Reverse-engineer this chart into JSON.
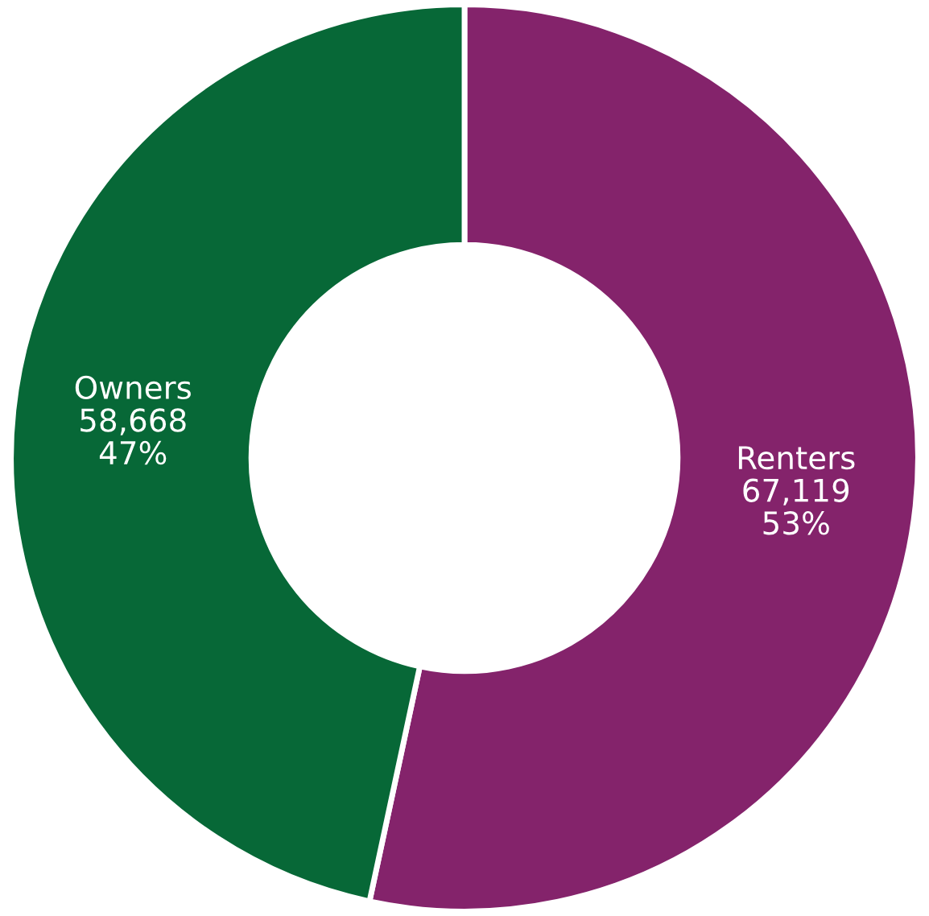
{
  "chart_data": {
    "type": "donut",
    "categories": [
      "Renters",
      "Owners"
    ],
    "values": [
      67119,
      58668
    ],
    "colors": [
      "#84236b",
      "#076837"
    ],
    "value_labels": [
      "67,119\n53%",
      "58,668\n47%"
    ]
  }
}
